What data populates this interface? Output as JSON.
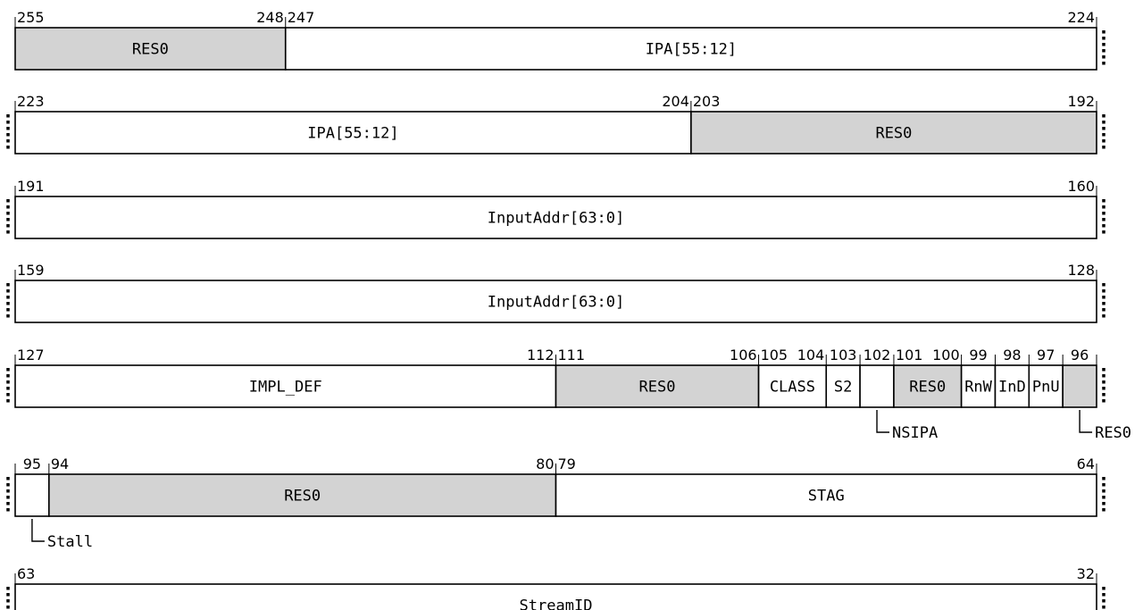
{
  "colors": {
    "reserved_fill": "#d3d3d3",
    "field_fill": "#ffffff",
    "stroke": "#000000"
  },
  "rows": [
    {
      "hi": 255,
      "lo": 224,
      "continues_left": false,
      "continues_right": true,
      "fields": [
        {
          "hi": 255,
          "lo": 248,
          "label": "RES0",
          "reserved": true
        },
        {
          "hi": 247,
          "lo": 224,
          "label": "IPA[55:12]",
          "reserved": false
        }
      ]
    },
    {
      "hi": 223,
      "lo": 192,
      "continues_left": true,
      "continues_right": true,
      "fields": [
        {
          "hi": 223,
          "lo": 204,
          "label": "IPA[55:12]",
          "reserved": false
        },
        {
          "hi": 203,
          "lo": 192,
          "label": "RES0",
          "reserved": true
        }
      ]
    },
    {
      "hi": 191,
      "lo": 160,
      "continues_left": true,
      "continues_right": true,
      "fields": [
        {
          "hi": 191,
          "lo": 160,
          "label": "InputAddr[63:0]",
          "reserved": false
        }
      ]
    },
    {
      "hi": 159,
      "lo": 128,
      "continues_left": true,
      "continues_right": true,
      "fields": [
        {
          "hi": 159,
          "lo": 128,
          "label": "InputAddr[63:0]",
          "reserved": false
        }
      ]
    },
    {
      "hi": 127,
      "lo": 96,
      "continues_left": true,
      "continues_right": true,
      "fields": [
        {
          "hi": 127,
          "lo": 112,
          "label": "IMPL_DEF",
          "reserved": false
        },
        {
          "hi": 111,
          "lo": 106,
          "label": "RES0",
          "reserved": true
        },
        {
          "hi": 105,
          "lo": 104,
          "label": "CLASS",
          "reserved": false
        },
        {
          "hi": 103,
          "lo": 103,
          "label": "S2",
          "reserved": false
        },
        {
          "hi": 102,
          "lo": 102,
          "label": "",
          "callout": "NSIPA",
          "reserved": false
        },
        {
          "hi": 101,
          "lo": 100,
          "label": "RES0",
          "reserved": true
        },
        {
          "hi": 99,
          "lo": 99,
          "label": "RnW",
          "reserved": false
        },
        {
          "hi": 98,
          "lo": 98,
          "label": "InD",
          "reserved": false
        },
        {
          "hi": 97,
          "lo": 97,
          "label": "PnU",
          "reserved": false
        },
        {
          "hi": 96,
          "lo": 96,
          "label": "",
          "callout": "RES0",
          "reserved": true
        }
      ]
    },
    {
      "hi": 95,
      "lo": 64,
      "continues_left": true,
      "continues_right": true,
      "fields": [
        {
          "hi": 95,
          "lo": 95,
          "label": "",
          "callout": "Stall",
          "reserved": false
        },
        {
          "hi": 94,
          "lo": 80,
          "label": "RES0",
          "reserved": true
        },
        {
          "hi": 79,
          "lo": 64,
          "label": "STAG",
          "reserved": false
        }
      ]
    },
    {
      "hi": 63,
      "lo": 32,
      "continues_left": true,
      "continues_right": true,
      "fields": [
        {
          "hi": 63,
          "lo": 32,
          "label": "StreamID",
          "reserved": false
        }
      ]
    }
  ]
}
